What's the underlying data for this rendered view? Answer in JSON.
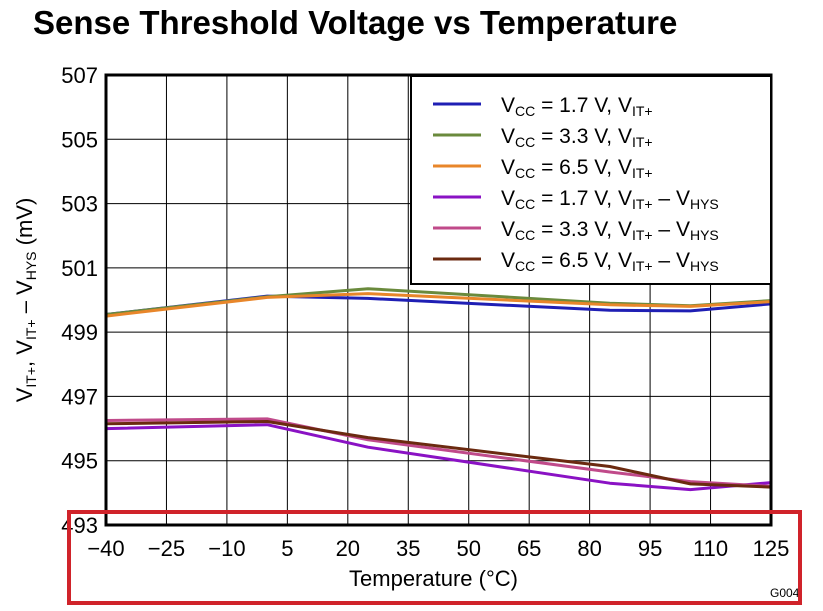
{
  "chart_data": {
    "type": "line",
    "title": "Sense Threshold Voltage vs Temperature",
    "xlabel": "Temperature (°C)",
    "ylabel": {
      "parts": [
        {
          "t": "V"
        },
        {
          "t": "IT+",
          "sub": true
        },
        {
          "t": ", V"
        },
        {
          "t": "IT+",
          "sub": true
        },
        {
          "t": " – V"
        },
        {
          "t": "HYS",
          "sub": true
        },
        {
          "t": " (mV)"
        }
      ]
    },
    "xlim": [
      -40,
      125
    ],
    "ylim": [
      493,
      507
    ],
    "xticks": [
      "−40",
      "−25",
      "−10",
      "5",
      "20",
      "35",
      "50",
      "65",
      "80",
      "95",
      "110",
      "125"
    ],
    "xtick_values": [
      -40,
      -25,
      -10,
      5,
      20,
      35,
      50,
      65,
      80,
      95,
      110,
      125
    ],
    "yticks": [
      "493",
      "495",
      "497",
      "499",
      "501",
      "503",
      "505",
      "507"
    ],
    "ytick_values": [
      493,
      495,
      497,
      499,
      501,
      503,
      505,
      507
    ],
    "grid": true,
    "legend_position": "top-right",
    "figure_id": "G004",
    "series": [
      {
        "name": "VCC = 1.7 V, VIT+",
        "label_parts": [
          {
            "t": "V"
          },
          {
            "t": "CC",
            "sub": true
          },
          {
            "t": " = 1.7 V, V"
          },
          {
            "t": "IT+",
            "sub": true
          }
        ],
        "color": "#1f1fb4",
        "x": [
          -40,
          0,
          25,
          85,
          105,
          125
        ],
        "y": [
          499.55,
          500.12,
          500.05,
          499.68,
          499.66,
          499.88
        ]
      },
      {
        "name": "VCC = 3.3 V, VIT+",
        "label_parts": [
          {
            "t": "V"
          },
          {
            "t": "CC",
            "sub": true
          },
          {
            "t": " = 3.3 V, V"
          },
          {
            "t": "IT+",
            "sub": true
          }
        ],
        "color": "#6a8a3c",
        "x": [
          -40,
          0,
          25,
          85,
          105,
          125
        ],
        "y": [
          499.55,
          500.1,
          500.35,
          499.9,
          499.82,
          499.98
        ]
      },
      {
        "name": "VCC = 6.5 V, VIT+",
        "label_parts": [
          {
            "t": "V"
          },
          {
            "t": "CC",
            "sub": true
          },
          {
            "t": " = 6.5 V, V"
          },
          {
            "t": "IT+",
            "sub": true
          }
        ],
        "color": "#e8862a",
        "x": [
          -40,
          0,
          25,
          85,
          105,
          125
        ],
        "y": [
          499.5,
          500.08,
          500.2,
          499.85,
          499.8,
          499.95
        ]
      },
      {
        "name": "VCC = 1.7 V, VIT+ – VHYS",
        "label_parts": [
          {
            "t": "V"
          },
          {
            "t": "CC",
            "sub": true
          },
          {
            "t": " = 1.7 V, V"
          },
          {
            "t": "IT+",
            "sub": true
          },
          {
            "t": " – V"
          },
          {
            "t": "HYS",
            "sub": true
          }
        ],
        "color": "#8a12c4",
        "x": [
          -40,
          0,
          25,
          85,
          105,
          125
        ],
        "y": [
          496.0,
          496.12,
          495.42,
          494.3,
          494.1,
          494.32
        ]
      },
      {
        "name": "VCC = 3.3 V, VIT+ – VHYS",
        "label_parts": [
          {
            "t": "V"
          },
          {
            "t": "CC",
            "sub": true
          },
          {
            "t": " = 3.3 V, V"
          },
          {
            "t": "IT+",
            "sub": true
          },
          {
            "t": " – V"
          },
          {
            "t": "HYS",
            "sub": true
          }
        ],
        "color": "#c04a8a",
        "x": [
          -40,
          0,
          25,
          85,
          105,
          125
        ],
        "y": [
          496.25,
          496.3,
          495.65,
          494.65,
          494.35,
          494.2
        ]
      },
      {
        "name": "VCC = 6.5 V, VIT+ – VHYS",
        "label_parts": [
          {
            "t": "V"
          },
          {
            "t": "CC",
            "sub": true
          },
          {
            "t": " = 6.5 V, V"
          },
          {
            "t": "IT+",
            "sub": true
          },
          {
            "t": " – V"
          },
          {
            "t": "HYS",
            "sub": true
          }
        ],
        "color": "#6b2a10",
        "x": [
          -40,
          0,
          25,
          85,
          105,
          125
        ],
        "y": [
          496.15,
          496.22,
          495.72,
          494.82,
          494.28,
          494.18
        ]
      }
    ]
  },
  "highlight": {
    "color": "#d0232a"
  }
}
